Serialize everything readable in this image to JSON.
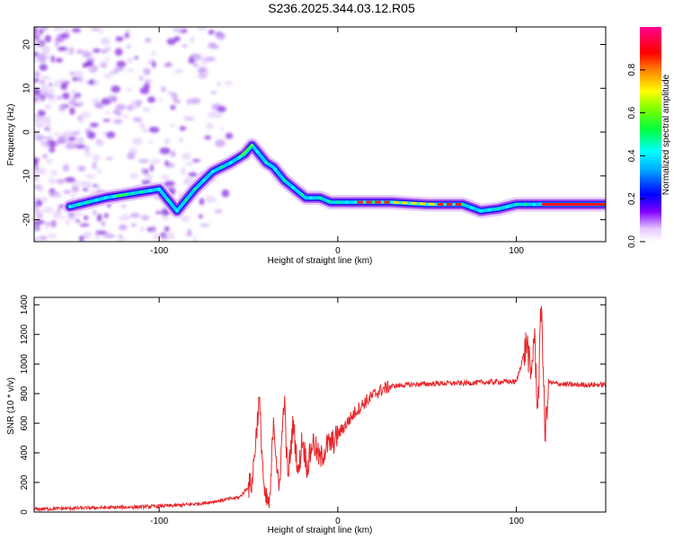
{
  "title": "S236.2025.344.03.12.R05",
  "chart_data": [
    {
      "type": "heatmap",
      "title": "S236.2025.344.03.12.R05",
      "xlabel": "Height of straight line (km)",
      "ylabel": "Frequency (Hz)",
      "xlim": [
        -170,
        150
      ],
      "ylim": [
        -25,
        24
      ],
      "x_ticks": [
        -100,
        0,
        100
      ],
      "y_ticks": [
        -20,
        -10,
        0,
        10,
        20
      ],
      "colorbar": {
        "label": "Normalized spectral amplitude",
        "range": [
          0,
          1
        ],
        "ticks": [
          "0.0",
          "0.2",
          "0.4",
          "0.6",
          "0.8"
        ],
        "colors": [
          "#ffffff",
          "#8000ff",
          "#0000ff",
          "#00ffff",
          "#00ff00",
          "#ffff00",
          "#ff8000",
          "#ff0000",
          "#ff0080"
        ]
      },
      "ridge": {
        "x": [
          -150,
          -130,
          -115,
          -100,
          -90,
          -80,
          -70,
          -60,
          -52,
          -48,
          -44,
          -40,
          -36,
          -30,
          -24,
          -18,
          -10,
          -4,
          0,
          10,
          30,
          50,
          70,
          80,
          90,
          100,
          110,
          150
        ],
        "y": [
          -17,
          -15,
          -14,
          -13,
          -18,
          -13,
          -9,
          -7,
          -5,
          -3,
          -5,
          -7,
          -8,
          -11,
          -13,
          -15,
          -15,
          -16,
          -16,
          -16,
          -16,
          -16.5,
          -16.5,
          -18,
          -17.5,
          -16.5,
          -16.5,
          -16.5
        ]
      }
    },
    {
      "type": "line",
      "xlabel": "Height of straight line (km)",
      "ylabel": "SNR (10 * v/v)",
      "xlim": [
        -170,
        150
      ],
      "ylim": [
        0,
        1450
      ],
      "x_ticks": [
        -100,
        0,
        100
      ],
      "y_ticks": [
        0,
        200,
        400,
        600,
        800,
        1000,
        1200,
        1400
      ],
      "series": [
        {
          "color": "#e8262b",
          "x": [
            -170,
            -150,
            -130,
            -110,
            -90,
            -75,
            -65,
            -55,
            -48,
            -44,
            -41,
            -38,
            -36,
            -33,
            -30,
            -28,
            -25,
            -22,
            -20,
            -17,
            -14,
            -10,
            -6,
            -2,
            0,
            5,
            10,
            15,
            20,
            25,
            30,
            40,
            50,
            60,
            70,
            80,
            90,
            100,
            106,
            108,
            110,
            112,
            114,
            116,
            118,
            120,
            130,
            140,
            150
          ],
          "y": [
            20,
            25,
            30,
            35,
            45,
            60,
            80,
            100,
            200,
            760,
            90,
            50,
            650,
            120,
            780,
            220,
            600,
            250,
            500,
            300,
            480,
            350,
            450,
            480,
            520,
            600,
            680,
            740,
            790,
            830,
            850,
            860,
            865,
            870,
            870,
            875,
            880,
            880,
            1150,
            900,
            1200,
            680,
            1450,
            500,
            880,
            870,
            860,
            860,
            860
          ]
        }
      ]
    }
  ]
}
